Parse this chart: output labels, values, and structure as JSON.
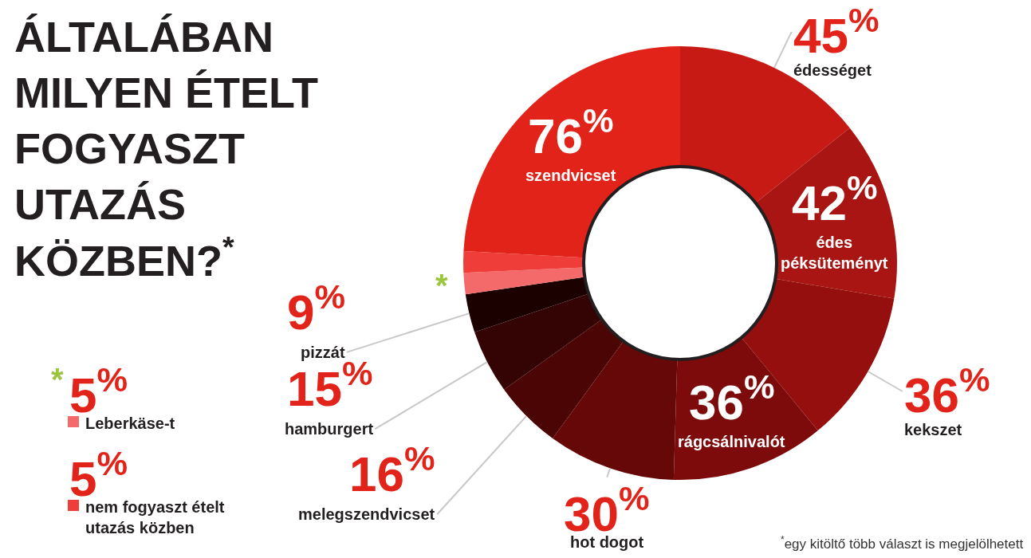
{
  "chart_data": {
    "type": "donut",
    "title": "ÁLTALÁBAN MILYEN ÉTELT FOGYASZT UTAZÁS KÖZBEN?$^{*}$",
    "categories": [
      "édességet",
      "édes péksüteményt",
      "kekszet",
      "rágcsálnivalót",
      "hot dogot",
      "melegszendvicset",
      "hamburgert",
      "pizzát",
      "Leberkäse-t",
      "nem fogyaszt ételt utazás közben",
      "szendvicset"
    ],
    "values": [
      45,
      42,
      36,
      36,
      30,
      16,
      15,
      9,
      5,
      5,
      76
    ],
    "value_labels": [
      "45$^{%}$",
      "42$^{%}$",
      "36$^{%}$",
      "36$^{%}$",
      "30$^{%}$",
      "16$^{%}$",
      "15$^{%}$",
      "9$^{%}$",
      "5$^{%}$",
      "5$^{%}$",
      "76$^{%}$"
    ],
    "colors": [
      "#c81a14",
      "#a91512",
      "#950f0e",
      "#7d0b0b",
      "#670808",
      "#4b0505",
      "#340303",
      "#1c0101",
      "#f46a6a",
      "#ef3d39",
      "#e2231a"
    ],
    "legend": "bottom left",
    "annotations": [
      {
        "text": "*",
        "x": "Leberkäse-t"
      },
      "$^{*}$egy kitöltő több választ is megjelölhetett"
    ]
  }
}
